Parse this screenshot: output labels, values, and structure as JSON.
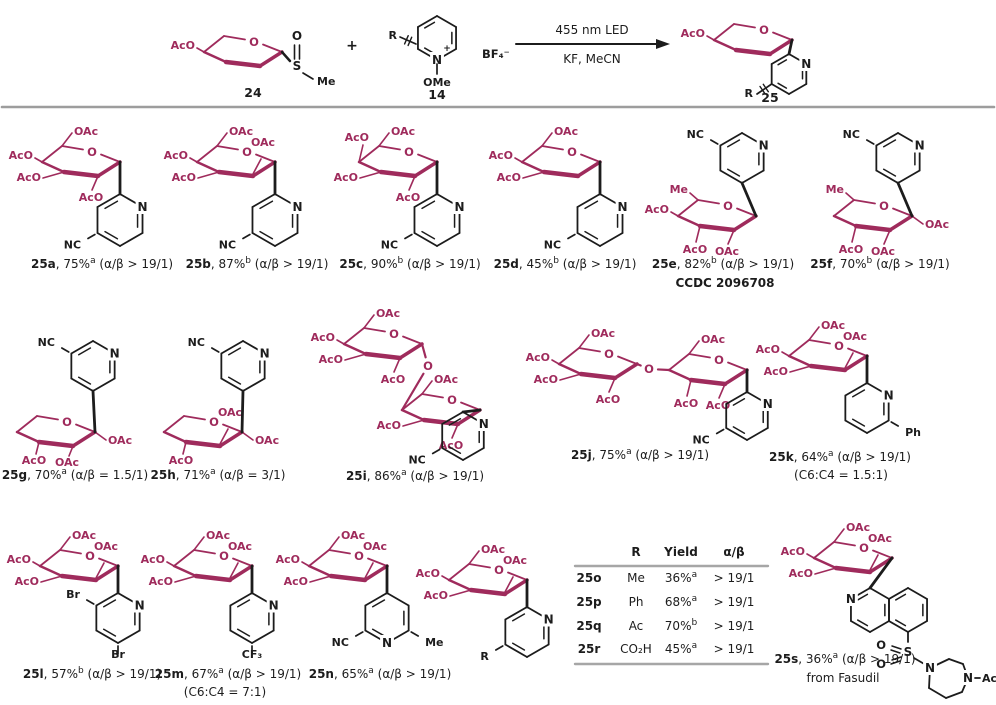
{
  "colors": {
    "sugar": "#9f2b5c",
    "ink": "#1c1c1c",
    "divider": "#9d9d9d",
    "table_line": "#a6a6a6"
  },
  "labels": {
    "ring_o": "O",
    "link_o": "O"
  },
  "scheme": {
    "reactant": {
      "number": "24",
      "aco": "AcO",
      "ring_o": "O",
      "s": "S",
      "so": "O",
      "me": "Me"
    },
    "plus": "+",
    "salt": {
      "number": "14",
      "r": "R",
      "n": "N",
      "charge": "+",
      "ome": "OMe",
      "bf4": "BF₄⁻"
    },
    "arrow": {
      "top": "455 nm LED",
      "bottom": "KF, MeCN"
    },
    "product": {
      "number": "25",
      "aco": "AcO",
      "n": "N",
      "r": "R"
    }
  },
  "compounds": [
    {
      "id": "25a",
      "yield": "75%",
      "sup": "a",
      "ratio": "(α/β > 19/1)",
      "note": "",
      "sugar": {
        "top": "OAc",
        "left1": "AcO",
        "left2": "AcO",
        "bottom": "AcO"
      },
      "n": "N",
      "subs": [
        {
          "slot": "ll",
          "text": "NC"
        }
      ]
    },
    {
      "id": "25b",
      "yield": "87%",
      "sup": "b",
      "ratio": "(α/β > 19/1)",
      "note": "",
      "sugar": {
        "top": "OAc",
        "top2": "OAc",
        "left1": "AcO",
        "left2": "AcO"
      },
      "n": "N",
      "subs": [
        {
          "slot": "ll",
          "text": "NC"
        }
      ]
    },
    {
      "id": "25c",
      "yield": "90%",
      "sup": "b",
      "ratio": "(α/β > 19/1)",
      "note": "",
      "sugar": {
        "top": "OAc",
        "topleft": "AcO",
        "left2": "AcO",
        "bottom": "AcO"
      },
      "n": "N",
      "subs": [
        {
          "slot": "ll",
          "text": "NC"
        }
      ]
    },
    {
      "id": "25d",
      "yield": "45%",
      "sup": "b",
      "ratio": "(α/β > 19/1)",
      "note": "",
      "sugar": {
        "top": "OAc",
        "left1": "AcO",
        "left2": "AcO"
      },
      "n": "N",
      "subs": [
        {
          "slot": "ll",
          "text": "NC"
        }
      ]
    },
    {
      "id": "25e",
      "yield": "82%",
      "sup": "b",
      "ratio": "(α/β > 19/1)",
      "note": "CCDC 2096708",
      "sugar": {
        "me": "Me",
        "left1": "AcO",
        "bottomleft": "AcO",
        "bottom": "OAc"
      },
      "n": "N",
      "subs": [
        {
          "slot": "ul",
          "text": "NC"
        }
      ]
    },
    {
      "id": "25f",
      "yield": "70%",
      "sup": "b",
      "ratio": "(α/β > 19/1)",
      "note": "",
      "sugar": {
        "me": "Me",
        "right": "OAc",
        "bottom": "OAc",
        "bottomleft": "AcO"
      },
      "n": "N",
      "subs": [
        {
          "slot": "ul",
          "text": "NC"
        }
      ]
    },
    {
      "id": "25g",
      "yield": "70%",
      "sup": "a",
      "ratio": "(α/β = 1.5/1)",
      "note": "",
      "sugar": {
        "right": "OAc",
        "bottom": "OAc",
        "bottomleft": "AcO"
      },
      "n": "N",
      "subs": [
        {
          "slot": "ul",
          "text": "NC"
        }
      ]
    },
    {
      "id": "25h",
      "yield": "71%",
      "sup": "a",
      "ratio": "(α/β = 3/1)",
      "note": "",
      "sugar": {
        "top2": "OAc",
        "right": "OAc",
        "bottomleft": "AcO"
      },
      "n": "N",
      "subs": [
        {
          "slot": "ul",
          "text": "NC"
        }
      ]
    },
    {
      "id": "25i",
      "yield": "86%",
      "sup": "a",
      "ratio": "(α/β > 19/1)",
      "note": "",
      "sugar": {
        "top": "OAc",
        "left1": "AcO",
        "left2": "AcO",
        "bottom": "AcO"
      },
      "sugar2": {
        "top": "OAc",
        "left2": "AcO",
        "bottom": "AcO"
      },
      "n": "N",
      "subs": [
        {
          "slot": "ll",
          "text": "NC"
        }
      ]
    },
    {
      "id": "25j",
      "yield": "75%",
      "sup": "a",
      "ratio": "(α/β > 19/1)",
      "note": "",
      "sugar": {
        "top": "OAc",
        "left1": "AcO",
        "left2": "AcO",
        "bottom": "AcO"
      },
      "sugar2": {
        "top": "OAc",
        "bottomleft": "AcO",
        "bottom": "AcO"
      },
      "n": "N",
      "subs": [
        {
          "slot": "ll",
          "text": "NC"
        }
      ]
    },
    {
      "id": "25k",
      "yield": "64%",
      "sup": "a",
      "ratio": "(α/β > 19/1)",
      "note": "(C6:C4 = 1.5:1)",
      "sugar": {
        "top": "OAc",
        "top2": "OAc",
        "left1": "AcO",
        "left2": "AcO"
      },
      "n": "N",
      "subs": [
        {
          "slot": "lr",
          "text": "Ph"
        }
      ]
    },
    {
      "id": "25l",
      "yield": "57%",
      "sup": "b",
      "ratio": "(α/β > 19/1)",
      "note": "",
      "sugar": {
        "top": "OAc",
        "top2": "OAc",
        "left1": "AcO",
        "left2": "AcO"
      },
      "n": "N",
      "subs": [
        {
          "slot": "ul",
          "text": "Br"
        },
        {
          "slot": "bottom",
          "text": "Br"
        }
      ]
    },
    {
      "id": "25m",
      "yield": "67%",
      "sup": "a",
      "ratio": "(α/β > 19/1)",
      "note": "(C6:C4 = 7:1)",
      "sugar": {
        "top": "OAc",
        "top2": "OAc",
        "left1": "AcO",
        "left2": "AcO"
      },
      "n": "N",
      "subs": [
        {
          "slot": "bottom",
          "text": "CF₃"
        }
      ]
    },
    {
      "id": "25n",
      "yield": "65%",
      "sup": "a",
      "ratio": "(α/β > 19/1)",
      "note": "",
      "sugar": {
        "top": "OAc",
        "top2": "OAc",
        "left1": "AcO",
        "left2": "AcO"
      },
      "n": "N",
      "subs": [
        {
          "slot": "ll",
          "text": "NC"
        },
        {
          "slot": "lr",
          "text": "Me"
        }
      ]
    },
    {
      "sugar": {
        "top": "OAc",
        "top2": "OAc",
        "left1": "AcO",
        "left2": "AcO"
      },
      "n": "N",
      "subs": [
        {
          "slot": "ll",
          "text": "R"
        }
      ]
    },
    {
      "id": "25s",
      "yield": "36%",
      "sup": "a",
      "ratio": "(α/β > 19/1)",
      "note": "from Fasudil",
      "sugar": {
        "top": "OAc",
        "top2": "OAc",
        "left1": "AcO",
        "left2": "AcO"
      },
      "iso_n": "N",
      "s": "S",
      "o1": "O",
      "o2": "O",
      "n1": "N",
      "n2": "N",
      "ac": "Ac"
    }
  ],
  "table": {
    "headers": [
      "R",
      "Yield",
      "α/β"
    ],
    "rows": [
      {
        "id": "25o",
        "r": "Me",
        "yield": "36%",
        "sup": "a",
        "ratio": "> 19/1"
      },
      {
        "id": "25p",
        "r": "Ph",
        "yield": "68%",
        "sup": "a",
        "ratio": "> 19/1"
      },
      {
        "id": "25q",
        "r": "Ac",
        "yield": "70%",
        "sup": "b",
        "ratio": "> 19/1"
      },
      {
        "id": "25r",
        "r": "CO₂H",
        "yield": "45%",
        "sup": "a",
        "ratio": "> 19/1"
      }
    ]
  }
}
